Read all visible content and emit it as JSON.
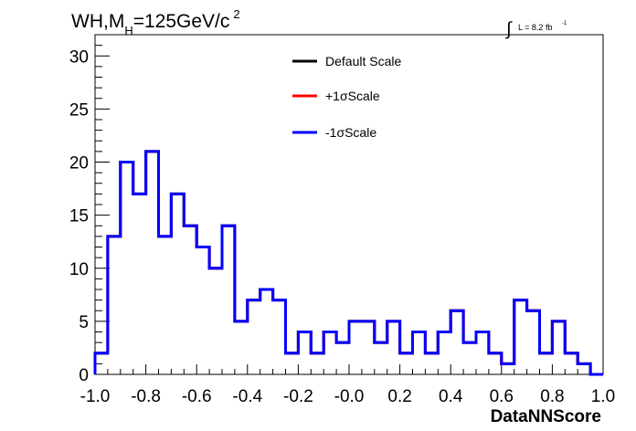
{
  "title": {
    "main": "WH,M",
    "sub": "H",
    "tail": "=125GeV/c",
    "sup": "2"
  },
  "luminosity": {
    "integral": "∫",
    "text": "L = 8.2 fb",
    "sup": "-1"
  },
  "chart_data": {
    "type": "step-histogram",
    "xlabel": "DataNNScore",
    "ylabel": "",
    "xlim": [
      -1.0,
      1.0
    ],
    "ylim": [
      0,
      32
    ],
    "xticks": [
      "-1.0",
      "-0.8",
      "-0.6",
      "-0.4",
      "-0.2",
      "-0.0",
      "0.2",
      "0.4",
      "0.6",
      "0.8",
      "1.0"
    ],
    "yticks": [
      "0",
      "5",
      "10",
      "15",
      "20",
      "25",
      "30"
    ],
    "bin_edges": [
      -1.0,
      -0.95,
      -0.9,
      -0.85,
      -0.8,
      -0.75,
      -0.7,
      -0.65,
      -0.6,
      -0.55,
      -0.5,
      -0.45,
      -0.4,
      -0.35,
      -0.3,
      -0.25,
      -0.2,
      -0.15,
      -0.1,
      -0.05,
      0.0,
      0.05,
      0.1,
      0.15,
      0.2,
      0.25,
      0.3,
      0.35,
      0.4,
      0.45,
      0.5,
      0.55,
      0.6,
      0.65,
      0.7,
      0.75,
      0.8,
      0.85,
      0.9,
      0.95,
      1.0
    ],
    "series": [
      {
        "name": "Default Scale",
        "color": "#000000",
        "values": [
          2,
          13,
          20,
          17,
          21,
          13,
          17,
          14,
          12,
          10,
          14,
          5,
          7,
          8,
          7,
          2,
          4,
          2,
          4,
          3,
          5,
          5,
          3,
          5,
          2,
          4,
          2,
          4,
          6,
          3,
          4,
          2,
          1,
          7,
          6,
          2,
          5,
          2,
          1,
          0
        ]
      },
      {
        "name": "+1σScale",
        "color": "#ff0000",
        "values": [
          2,
          13,
          20,
          17,
          21,
          13,
          17,
          14,
          12,
          10,
          14,
          5,
          7,
          8,
          7,
          2,
          4,
          2,
          4,
          3,
          5,
          5,
          3,
          5,
          2,
          4,
          2,
          4,
          6,
          3,
          4,
          2,
          1,
          7,
          6,
          2,
          5,
          2,
          1,
          0
        ]
      },
      {
        "name": "-1σScale",
        "color": "#0000ff",
        "values": [
          2,
          13,
          20,
          17,
          21,
          13,
          17,
          14,
          12,
          10,
          14,
          5,
          7,
          8,
          7,
          2,
          4,
          2,
          4,
          3,
          5,
          5,
          3,
          5,
          2,
          4,
          2,
          4,
          6,
          3,
          4,
          2,
          1,
          7,
          6,
          2,
          5,
          2,
          1,
          0
        ]
      }
    ],
    "legend_position": "top-center",
    "grid": false
  }
}
